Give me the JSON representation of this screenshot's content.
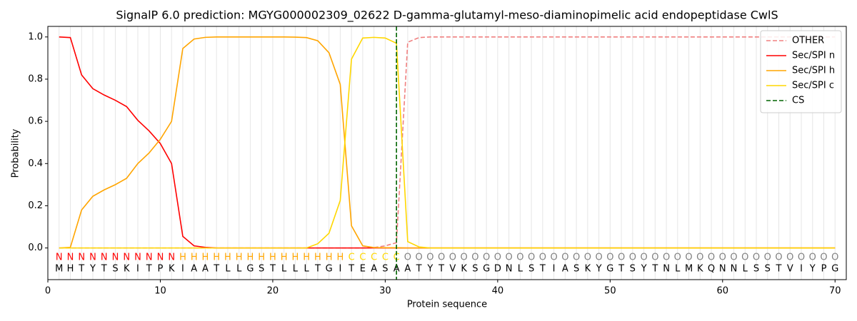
{
  "chart_data": {
    "type": "line",
    "title": "SignalP 6.0 prediction: MGYG000002309_02622 D-gamma-glutamyl-meso-diaminopimelic acid endopeptidase CwlS",
    "x_label": "Protein sequence",
    "y_label": "Probability",
    "x": [
      1,
      2,
      3,
      4,
      5,
      6,
      7,
      8,
      9,
      10,
      11,
      12,
      13,
      14,
      15,
      16,
      17,
      18,
      19,
      20,
      21,
      22,
      23,
      24,
      25,
      26,
      27,
      28,
      29,
      30,
      31,
      32,
      33,
      34,
      35,
      36,
      37,
      38,
      39,
      40,
      41,
      42,
      43,
      44,
      45,
      46,
      47,
      48,
      49,
      50,
      51,
      52,
      53,
      54,
      55,
      56,
      57,
      58,
      59,
      60,
      61,
      62,
      63,
      64,
      65,
      66,
      67,
      68,
      69,
      70
    ],
    "xlim": [
      0,
      71
    ],
    "xticks": [
      0,
      10,
      20,
      30,
      40,
      50,
      60,
      70
    ],
    "ylim": [
      -0.15,
      1.05
    ],
    "yticks": [
      {
        "value": 0,
        "label": "0.0"
      },
      0.2,
      0.4,
      0.6,
      0.8,
      {
        "value": 1,
        "label": "1.0"
      }
    ],
    "grid": true,
    "legend": "upper right",
    "series": [
      {
        "name": "OTHER",
        "color": "#f08080",
        "dashed": true,
        "values": [
          0,
          0,
          0,
          0,
          0,
          0,
          0,
          0,
          0,
          0,
          0,
          0,
          0,
          0,
          0,
          0,
          0,
          0,
          0,
          0,
          0,
          0,
          0,
          0,
          0,
          0,
          0,
          0,
          0.002,
          0.01,
          0.025,
          0.975,
          0.997,
          1,
          1,
          1,
          1,
          1,
          1,
          1,
          1,
          1,
          1,
          1,
          1,
          1,
          1,
          1,
          1,
          1,
          1,
          1,
          1,
          1,
          1,
          1,
          1,
          1,
          1,
          1,
          1,
          1,
          1,
          1,
          1,
          1,
          1,
          1,
          1,
          1
        ]
      },
      {
        "name": "Sec/SPI n",
        "color": "#ff0000",
        "dashed": false,
        "values": [
          1.0,
          0.997,
          0.82,
          0.755,
          0.725,
          0.7,
          0.67,
          0.605,
          0.555,
          0.495,
          0.4,
          0.055,
          0.01,
          0.003,
          0,
          0,
          0,
          0,
          0,
          0,
          0,
          0,
          0,
          0,
          0,
          0,
          0,
          0,
          0,
          0,
          0,
          0,
          0,
          0,
          0,
          0,
          0,
          0,
          0,
          0,
          0,
          0,
          0,
          0,
          0,
          0,
          0,
          0,
          0,
          0,
          0,
          0,
          0,
          0,
          0,
          0,
          0,
          0,
          0,
          0,
          0,
          0,
          0,
          0,
          0,
          0,
          0,
          0,
          0,
          0
        ]
      },
      {
        "name": "Sec/SPI h",
        "color": "#ffa500",
        "dashed": false,
        "values": [
          0,
          0.003,
          0.18,
          0.245,
          0.275,
          0.3,
          0.33,
          0.4,
          0.45,
          0.515,
          0.6,
          0.945,
          0.99,
          0.998,
          1,
          1,
          1,
          1,
          1,
          1,
          1,
          0.999,
          0.997,
          0.982,
          0.925,
          0.775,
          0.105,
          0.01,
          0.002,
          0.001,
          0.001,
          0,
          0,
          0,
          0,
          0,
          0,
          0,
          0,
          0,
          0,
          0,
          0,
          0,
          0,
          0,
          0,
          0,
          0,
          0,
          0,
          0,
          0,
          0,
          0,
          0,
          0,
          0,
          0,
          0,
          0,
          0,
          0,
          0,
          0,
          0,
          0,
          0,
          0,
          0
        ]
      },
      {
        "name": "Sec/SPI c",
        "color": "#ffd700",
        "dashed": false,
        "values": [
          0,
          0,
          0,
          0,
          0,
          0,
          0,
          0,
          0,
          0,
          0,
          0,
          0,
          0,
          0,
          0,
          0,
          0,
          0,
          0,
          0,
          0,
          0,
          0.02,
          0.07,
          0.225,
          0.895,
          0.995,
          0.998,
          0.995,
          0.97,
          0.03,
          0.005,
          0,
          0,
          0,
          0,
          0,
          0,
          0,
          0,
          0,
          0,
          0,
          0,
          0,
          0,
          0,
          0,
          0,
          0,
          0,
          0,
          0,
          0,
          0,
          0,
          0,
          0,
          0,
          0,
          0,
          0,
          0,
          0,
          0,
          0,
          0,
          0,
          0
        ]
      }
    ],
    "cs": {
      "name": "CS",
      "x": 31,
      "color": "#006400"
    },
    "region_colors": {
      "N": "#ff0000",
      "H": "#ffa500",
      "C": "#ffd700",
      "O": "#808080"
    },
    "regions": [
      "N",
      "N",
      "N",
      "N",
      "N",
      "N",
      "N",
      "N",
      "N",
      "N",
      "N",
      "H",
      "H",
      "H",
      "H",
      "H",
      "H",
      "H",
      "H",
      "H",
      "H",
      "H",
      "H",
      "H",
      "H",
      "H",
      "C",
      "C",
      "C",
      "C",
      "C",
      "O",
      "O",
      "O",
      "O",
      "O",
      "O",
      "O",
      "O",
      "O",
      "O",
      "O",
      "O",
      "O",
      "O",
      "O",
      "O",
      "O",
      "O",
      "O",
      "O",
      "O",
      "O",
      "O",
      "O",
      "O",
      "O",
      "O",
      "O",
      "O",
      "O",
      "O",
      "O",
      "O",
      "O",
      "O",
      "O",
      "O",
      "O",
      "O"
    ],
    "sequence": [
      "M",
      "H",
      "T",
      "Y",
      "T",
      "S",
      "K",
      "I",
      "T",
      "P",
      "K",
      "I",
      "A",
      "A",
      "T",
      "L",
      "L",
      "G",
      "S",
      "T",
      "L",
      "L",
      "L",
      "T",
      "G",
      "I",
      "T",
      "E",
      "A",
      "S",
      "A",
      "A",
      "T",
      "Y",
      "T",
      "V",
      "K",
      "S",
      "G",
      "D",
      "N",
      "L",
      "S",
      "T",
      "I",
      "A",
      "S",
      "K",
      "Y",
      "G",
      "T",
      "S",
      "Y",
      "T",
      "N",
      "L",
      "M",
      "K",
      "Q",
      "N",
      "N",
      "L",
      "S",
      "S",
      "T",
      "V",
      "I",
      "Y",
      "P",
      "G"
    ]
  }
}
